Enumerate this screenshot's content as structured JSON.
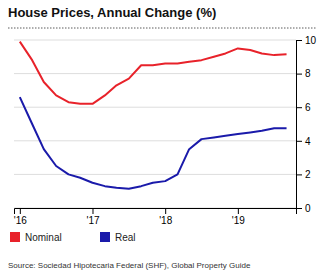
{
  "chart_data": {
    "type": "line",
    "title": "House Prices, Annual Change (%)",
    "annotations": [
      "Source: Sociedad Hipotecaria Federal (SHF), Global Property Guide"
    ],
    "x": [
      2016.0,
      2016.17,
      2016.33,
      2016.5,
      2016.67,
      2016.83,
      2017.0,
      2017.17,
      2017.33,
      2017.5,
      2017.67,
      2017.83,
      2018.0,
      2018.17,
      2018.33,
      2018.5,
      2018.67,
      2018.83,
      2019.0,
      2019.17,
      2019.33,
      2019.5,
      2019.67
    ],
    "series": [
      {
        "name": "Nominal",
        "color": "#e8222a",
        "values": [
          9.9,
          8.8,
          7.5,
          6.7,
          6.3,
          6.2,
          6.2,
          6.7,
          7.3,
          7.7,
          8.5,
          8.5,
          8.6,
          8.6,
          8.7,
          8.8,
          9.0,
          9.2,
          9.5,
          9.4,
          9.2,
          9.1,
          9.15
        ]
      },
      {
        "name": "Real",
        "color": "#1a1aaa",
        "values": [
          6.6,
          5.0,
          3.5,
          2.5,
          2.0,
          1.8,
          1.5,
          1.3,
          1.2,
          1.15,
          1.3,
          1.5,
          1.6,
          2.0,
          3.5,
          4.1,
          4.2,
          4.3,
          4.4,
          4.5,
          4.6,
          4.75,
          4.75
        ]
      }
    ],
    "xlim": [
      2015.92,
      2019.8
    ],
    "xticks": [
      {
        "value": 2016,
        "label": "'16"
      },
      {
        "value": 2017,
        "label": "'17"
      },
      {
        "value": 2018,
        "label": "'18"
      },
      {
        "value": 2019,
        "label": "'19"
      }
    ],
    "ylim": [
      0,
      10
    ],
    "yticks": [
      0,
      2,
      4,
      6,
      8,
      10
    ],
    "grid": true,
    "legend": "bottom"
  }
}
